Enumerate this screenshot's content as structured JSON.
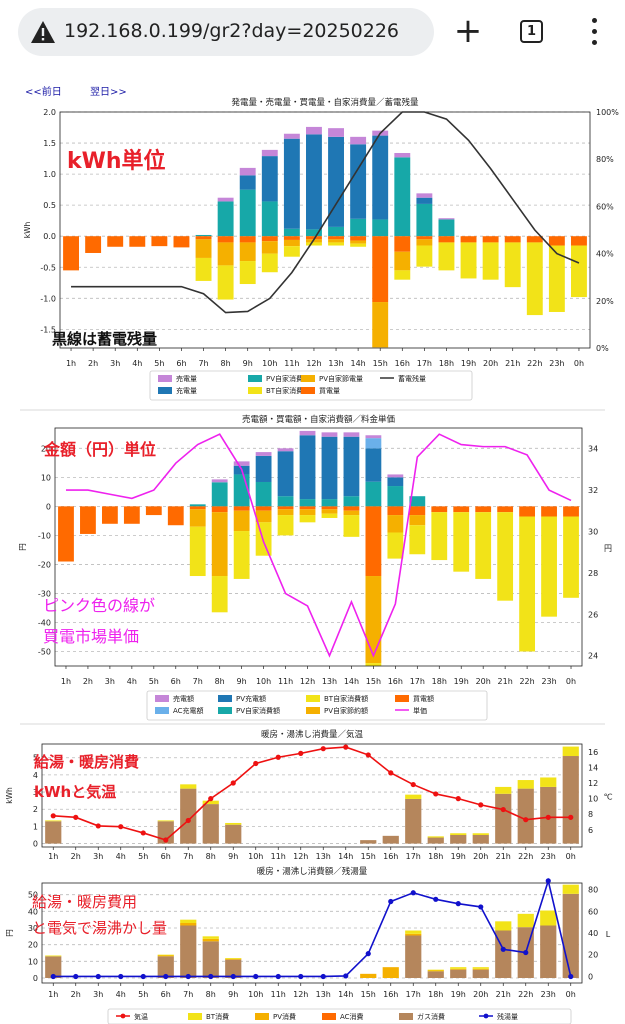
{
  "browser": {
    "url": "192.168.0.199/gr2?day=20250226",
    "tab_count": "1",
    "new_tab_label": "+"
  },
  "nav": {
    "prev": "<<前日",
    "next": "翌日>>"
  },
  "colors": {
    "sell": "#c586d8",
    "charge": "#1f77b4",
    "pv_self": "#17a8a8",
    "bt_self": "#f2e318",
    "pv_saving": "#f5b000",
    "buy": "#ff6a00",
    "ac_charge": "#6ab0ea",
    "gas": "#b5865c",
    "battery_line": "#333333",
    "price_line": "#ee22ee",
    "temp_line": "#ee1111",
    "tank_line": "#1111cc",
    "annot_red": "#e8202a",
    "annot_pink": "#ee22ee"
  },
  "hours": [
    "1h",
    "2h",
    "3h",
    "4h",
    "5h",
    "6h",
    "7h",
    "8h",
    "9h",
    "10h",
    "11h",
    "12h",
    "13h",
    "14h",
    "15h",
    "16h",
    "17h",
    "18h",
    "19h",
    "20h",
    "21h",
    "22h",
    "23h",
    "0h"
  ],
  "annotations": {
    "c1_unit": "kWh単位",
    "c1_line": "黒線は蓄電残量",
    "c2_unit": "金額（円）単位",
    "c2_line1": "ピンク色の線が",
    "c2_line2": "買電市場単価",
    "c3_line1": "給湯・暖房消費",
    "c3_line2": "kWhと気温",
    "c4_line1": "給湯・暖房費用",
    "c4_line2": "と電気で湯沸かし量"
  },
  "chart_data": [
    {
      "type": "bar",
      "title": "発電量・売電量・買電量・自家消費量／蓄電残量",
      "ylabel": "kWh",
      "y2label": "",
      "ylim": [
        -1.8,
        2.0
      ],
      "y2lim": [
        0,
        100
      ],
      "yticks": [
        2.0,
        1.5,
        1.0,
        0.5,
        0.0,
        -0.5,
        -1.0,
        -1.5
      ],
      "y2ticks": [
        "0%",
        "20%",
        "40%",
        "60%",
        "80%",
        "100%"
      ],
      "grid": true,
      "legend": {
        "position": "bottom",
        "entries": [
          {
            "label": "売電量",
            "color": "sell",
            "kind": "bar"
          },
          {
            "label": "充電量",
            "color": "charge",
            "kind": "bar"
          },
          {
            "label": "PV自家消費量",
            "color": "pv_self",
            "kind": "bar"
          },
          {
            "label": "BT自家消費量",
            "color": "bt_self",
            "kind": "bar"
          },
          {
            "label": "PV自家節電量",
            "color": "pv_saving",
            "kind": "bar"
          },
          {
            "label": "買電量",
            "color": "buy",
            "kind": "bar"
          },
          {
            "label": "蓄電残量",
            "color": "battery_line",
            "kind": "line"
          }
        ]
      },
      "positive_series": [
        {
          "name": "PV自家消費量",
          "color": "pv_self",
          "values": [
            0,
            0,
            0,
            0,
            0,
            0,
            0.02,
            0.56,
            0.75,
            0.56,
            0.12,
            0.11,
            0.15,
            0.28,
            0.27,
            1.27,
            0.52,
            0.27,
            0,
            0,
            0,
            0,
            0,
            0
          ]
        },
        {
          "name": "充電量",
          "color": "charge",
          "values": [
            0,
            0,
            0,
            0,
            0,
            0,
            0,
            0,
            0.23,
            0.73,
            1.45,
            1.53,
            1.45,
            1.2,
            1.35,
            0,
            0.1,
            0,
            0,
            0,
            0,
            0,
            0,
            0
          ]
        },
        {
          "name": "売電量",
          "color": "sell",
          "values": [
            0,
            0,
            0,
            0,
            0,
            0,
            0,
            0.06,
            0.12,
            0.1,
            0.08,
            0.12,
            0.14,
            0.12,
            0.08,
            0.07,
            0.07,
            0.02,
            0,
            0,
            0,
            0,
            0,
            0
          ]
        }
      ],
      "negative_series": [
        {
          "name": "買電量",
          "color": "buy",
          "values": [
            -0.55,
            -0.27,
            -0.17,
            -0.17,
            -0.16,
            -0.18,
            -0.05,
            -0.1,
            -0.1,
            -0.08,
            -0.06,
            -0.05,
            -0.05,
            -0.07,
            -1.06,
            -0.25,
            -0.05,
            -0.1,
            -0.1,
            -0.1,
            -0.1,
            -0.1,
            -0.15,
            -0.15
          ]
        },
        {
          "name": "PV自家節電量",
          "color": "pv_saving",
          "values": [
            0,
            0,
            0,
            0,
            0,
            0,
            -0.3,
            -0.37,
            -0.3,
            -0.2,
            -0.1,
            -0.05,
            -0.05,
            -0.05,
            -0.73,
            -0.3,
            -0.1,
            0,
            0,
            0,
            0,
            0,
            0,
            0
          ]
        },
        {
          "name": "BT自家消費量",
          "color": "bt_self",
          "values": [
            0,
            0,
            0,
            0,
            0,
            0,
            -0.37,
            -0.55,
            -0.37,
            -0.3,
            -0.17,
            -0.05,
            -0.05,
            -0.05,
            0,
            -0.15,
            -0.34,
            -0.45,
            -0.58,
            -0.6,
            -0.72,
            -1.17,
            -1.07,
            -0.83
          ]
        }
      ],
      "line": {
        "name": "蓄電残量",
        "color": "battery_line",
        "axis": "y2",
        "values": [
          26,
          26,
          26,
          26,
          26,
          26,
          23,
          15,
          15.5,
          21,
          32,
          46,
          61,
          76,
          91,
          100,
          100,
          97,
          88,
          76,
          63,
          50,
          40,
          36
        ]
      }
    },
    {
      "type": "bar",
      "title": "売電額・買電額・自家消費額／料金単価",
      "ylabel": "円",
      "y2label": "円",
      "ylim": [
        -55,
        27
      ],
      "y2lim": [
        23.5,
        35
      ],
      "yticks": [
        20,
        10,
        0,
        -10,
        -20,
        -30,
        -40,
        -50
      ],
      "y2ticks": [
        "24",
        "26",
        "28",
        "30",
        "32",
        "34"
      ],
      "y2tickvals": [
        24,
        26,
        28,
        30,
        32,
        34
      ],
      "grid": true,
      "legend": {
        "position": "bottom",
        "entries": [
          {
            "label": "売電額",
            "color": "sell",
            "kind": "bar"
          },
          {
            "label": "AC充電額",
            "color": "ac_charge",
            "kind": "bar"
          },
          {
            "label": "PV充電額",
            "color": "charge",
            "kind": "bar"
          },
          {
            "label": "PV自家消費額",
            "color": "pv_self",
            "kind": "bar"
          },
          {
            "label": "BT自家消費額",
            "color": "bt_self",
            "kind": "bar"
          },
          {
            "label": "PV自家節約額",
            "color": "pv_saving",
            "kind": "bar"
          },
          {
            "label": "買電額",
            "color": "buy",
            "kind": "bar"
          },
          {
            "label": "単価",
            "color": "price_line",
            "kind": "line"
          }
        ]
      },
      "positive_series": [
        {
          "name": "PV自家消費額",
          "color": "pv_self",
          "values": [
            0,
            0,
            0,
            0,
            0,
            0,
            0.7,
            8.3,
            11,
            8.4,
            3.5,
            2.5,
            2.5,
            3.5,
            8.5,
            7,
            3.5,
            0,
            0,
            0,
            0,
            0,
            0,
            0
          ]
        },
        {
          "name": "PV充電額",
          "color": "charge",
          "values": [
            0,
            0,
            0,
            0,
            0,
            0,
            0,
            0,
            3,
            9,
            15.5,
            22,
            21.5,
            20.5,
            11.5,
            3,
            0,
            0,
            0,
            0,
            0,
            0,
            0,
            0
          ]
        },
        {
          "name": "AC充電額",
          "color": "ac_charge",
          "values": [
            0,
            0,
            0,
            0,
            0,
            0,
            0,
            0,
            0,
            0,
            0,
            0,
            0,
            0,
            3.5,
            0,
            0,
            0,
            0,
            0,
            0,
            0,
            0,
            0
          ]
        },
        {
          "name": "売電額",
          "color": "sell",
          "values": [
            0,
            0,
            0,
            0,
            0,
            0,
            0,
            1,
            1.5,
            1.3,
            1,
            1.5,
            1.5,
            1.5,
            1,
            1,
            0,
            0,
            0,
            0,
            0,
            0,
            0,
            0
          ]
        }
      ],
      "negative_series": [
        {
          "name": "買電額",
          "color": "buy",
          "values": [
            -19,
            -9.5,
            -6,
            -6,
            -3,
            -6.5,
            -1,
            -2,
            -1.5,
            -1.5,
            -1,
            -1,
            -1,
            -1.5,
            -24,
            -3,
            -3,
            -2,
            -2,
            -2,
            -2,
            -3.5,
            -3.5,
            -3.5
          ]
        },
        {
          "name": "PV自家節約額",
          "color": "pv_saving",
          "values": [
            0,
            0,
            0,
            0,
            0,
            0,
            -6,
            -22,
            -7,
            -4,
            -2,
            -2,
            -1.5,
            -1.5,
            -30,
            -6,
            -3.5,
            0,
            0,
            0,
            0,
            0,
            0,
            0
          ]
        },
        {
          "name": "BT自家消費額",
          "color": "bt_self",
          "values": [
            0,
            0,
            0,
            0,
            0,
            0,
            -17,
            -12.5,
            -16.5,
            -11.5,
            -7,
            -2.5,
            -1.5,
            -7.5,
            -1,
            -9,
            -10,
            -16.5,
            -20.5,
            -23,
            -30.5,
            -46.5,
            -34.5,
            -28
          ]
        }
      ],
      "line": {
        "name": "単価",
        "color": "price_line",
        "axis": "y2",
        "values": [
          32,
          32,
          31.8,
          31.6,
          32,
          33.3,
          34.2,
          34.7,
          33,
          29.5,
          27,
          26.4,
          24,
          26.6,
          24,
          26.5,
          33.6,
          34.7,
          34.2,
          34.1,
          34.1,
          33.7,
          32,
          31.5
        ]
      }
    },
    {
      "type": "bar",
      "title": "暖房・湯沸し消費量／気温",
      "ylabel": "kWh",
      "y2label": "℃",
      "ylim": [
        -0.2,
        5.8
      ],
      "y2lim": [
        3.8,
        17
      ],
      "yticks": [
        5,
        4,
        3,
        2,
        1,
        0
      ],
      "y2ticks": [
        "6",
        "8",
        "10",
        "12",
        "14",
        "16"
      ],
      "y2tickvals": [
        6,
        8,
        10,
        12,
        14,
        16
      ],
      "grid": true,
      "series": [
        {
          "name": "ガス消費",
          "color": "gas",
          "values": [
            1.3,
            0,
            0,
            0,
            0,
            1.3,
            3.2,
            2.3,
            1.1,
            0,
            0,
            0,
            0,
            0,
            0.2,
            0.45,
            2.6,
            0.35,
            0.5,
            0.5,
            2.9,
            3.2,
            3.3,
            5.1
          ]
        },
        {
          "name": "BT消費",
          "color": "bt_self",
          "values": [
            0.05,
            0,
            0,
            0,
            0,
            0.05,
            0.25,
            0.2,
            0.1,
            0,
            0,
            0,
            0,
            0,
            0,
            0,
            0.25,
            0.07,
            0.1,
            0.1,
            0.4,
            0.5,
            0.55,
            0.55
          ]
        }
      ],
      "line": {
        "name": "気温",
        "color": "temp_line",
        "axis": "y2",
        "values": [
          7.8,
          7.6,
          6.5,
          6.4,
          5.6,
          4.7,
          7.2,
          10,
          12,
          14.5,
          15.3,
          15.8,
          16.4,
          16.6,
          15.6,
          13.3,
          11.8,
          10.6,
          10,
          9.2,
          8.6,
          7.3,
          7.6,
          7.6
        ]
      }
    },
    {
      "type": "bar",
      "title": "暖房・湯沸し消費額／残湯量",
      "ylabel": "円",
      "y2label": "L",
      "ylim": [
        -3,
        57
      ],
      "y2lim": [
        -6,
        86
      ],
      "yticks": [
        50,
        40,
        30,
        20,
        10,
        0
      ],
      "y2ticks": [
        "0",
        "20",
        "40",
        "60",
        "80"
      ],
      "y2tickvals": [
        0,
        20,
        40,
        60,
        80
      ],
      "grid": true,
      "legend": {
        "position": "bottom",
        "entries": [
          {
            "label": "気温",
            "color": "temp_line",
            "kind": "line"
          },
          {
            "label": "BT消費",
            "color": "bt_self",
            "kind": "bar"
          },
          {
            "label": "PV消費",
            "color": "pv_saving",
            "kind": "bar"
          },
          {
            "label": "AC消費",
            "color": "buy",
            "kind": "bar"
          },
          {
            "label": "ガス消費",
            "color": "gas",
            "kind": "bar"
          },
          {
            "label": "残湯量",
            "color": "tank_line",
            "kind": "line"
          }
        ]
      },
      "series": [
        {
          "name": "ガス消費",
          "color": "gas",
          "values": [
            13,
            0,
            0,
            0,
            0,
            13,
            31.5,
            22,
            11,
            0,
            0,
            0,
            0,
            0,
            0,
            0,
            25.5,
            4,
            5,
            5,
            28.5,
            30.5,
            31.5,
            50.5
          ]
        },
        {
          "name": "PV消費",
          "color": "pv_saving",
          "values": [
            0,
            0,
            0,
            0,
            0,
            0.5,
            1.5,
            1.5,
            0.5,
            0,
            0,
            0,
            0,
            0,
            2.5,
            6.5,
            1,
            0.5,
            0.5,
            0.5,
            0,
            0,
            0,
            0
          ]
        },
        {
          "name": "BT消費",
          "color": "bt_self",
          "values": [
            0.5,
            0,
            0,
            0,
            0,
            0.5,
            2,
            1.5,
            0.5,
            0,
            0,
            0,
            0,
            0,
            0,
            0,
            2,
            0.5,
            1,
            1,
            5.5,
            8,
            9,
            5.5
          ]
        }
      ],
      "line": {
        "name": "残湯量",
        "color": "tank_line",
        "axis": "y2",
        "values": [
          0,
          0,
          0,
          0,
          0,
          0,
          0,
          0,
          0,
          0,
          0,
          0,
          0,
          0.5,
          21,
          69,
          77,
          71,
          67,
          64,
          25,
          22,
          88,
          0
        ]
      }
    }
  ]
}
